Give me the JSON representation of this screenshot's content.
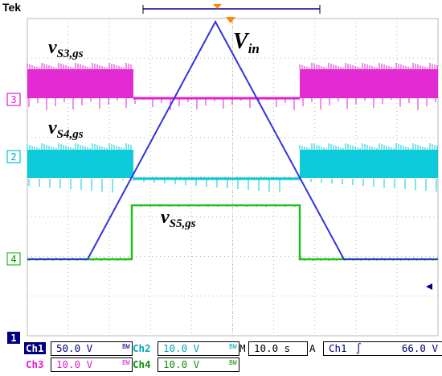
{
  "brand": "Tek",
  "waveform_labels": {
    "vs3": {
      "main": "v",
      "sub": "S3,gs"
    },
    "vs4": {
      "main": "v",
      "sub": "S4,gs"
    },
    "vs5": {
      "main": "v",
      "sub": "S5,gs"
    },
    "vin": {
      "main": "V",
      "sub": "in"
    }
  },
  "channel_markers": {
    "ch3": "3",
    "ch2": "2",
    "ch4": "4",
    "ch1": "1"
  },
  "status_bar": {
    "ch1": {
      "label": "Ch1",
      "value": "50.0 V",
      "bw": "BW"
    },
    "ch2": {
      "label": "Ch2",
      "value": "10.0 V",
      "bw": "BW"
    },
    "ch3": {
      "label": "Ch3",
      "value": "10.0 V",
      "bw": "BW"
    },
    "ch4": {
      "label": "Ch4",
      "value": "10.0 V",
      "bw": "BW"
    },
    "timebase": {
      "label": "M",
      "value": "10.0 s"
    },
    "trigger": {
      "mode": "A",
      "source": "Ch1",
      "slope_icon": "rising-edge-icon",
      "level": "66.0 V"
    }
  },
  "colors": {
    "ch1": "#3333dd",
    "ch2": "#00c8d8",
    "ch3": "#e020d0",
    "ch4": "#20c020",
    "trigger_marker": "#ff8800",
    "grid": "#b8b8b8",
    "marker_bg": "#000080"
  }
}
